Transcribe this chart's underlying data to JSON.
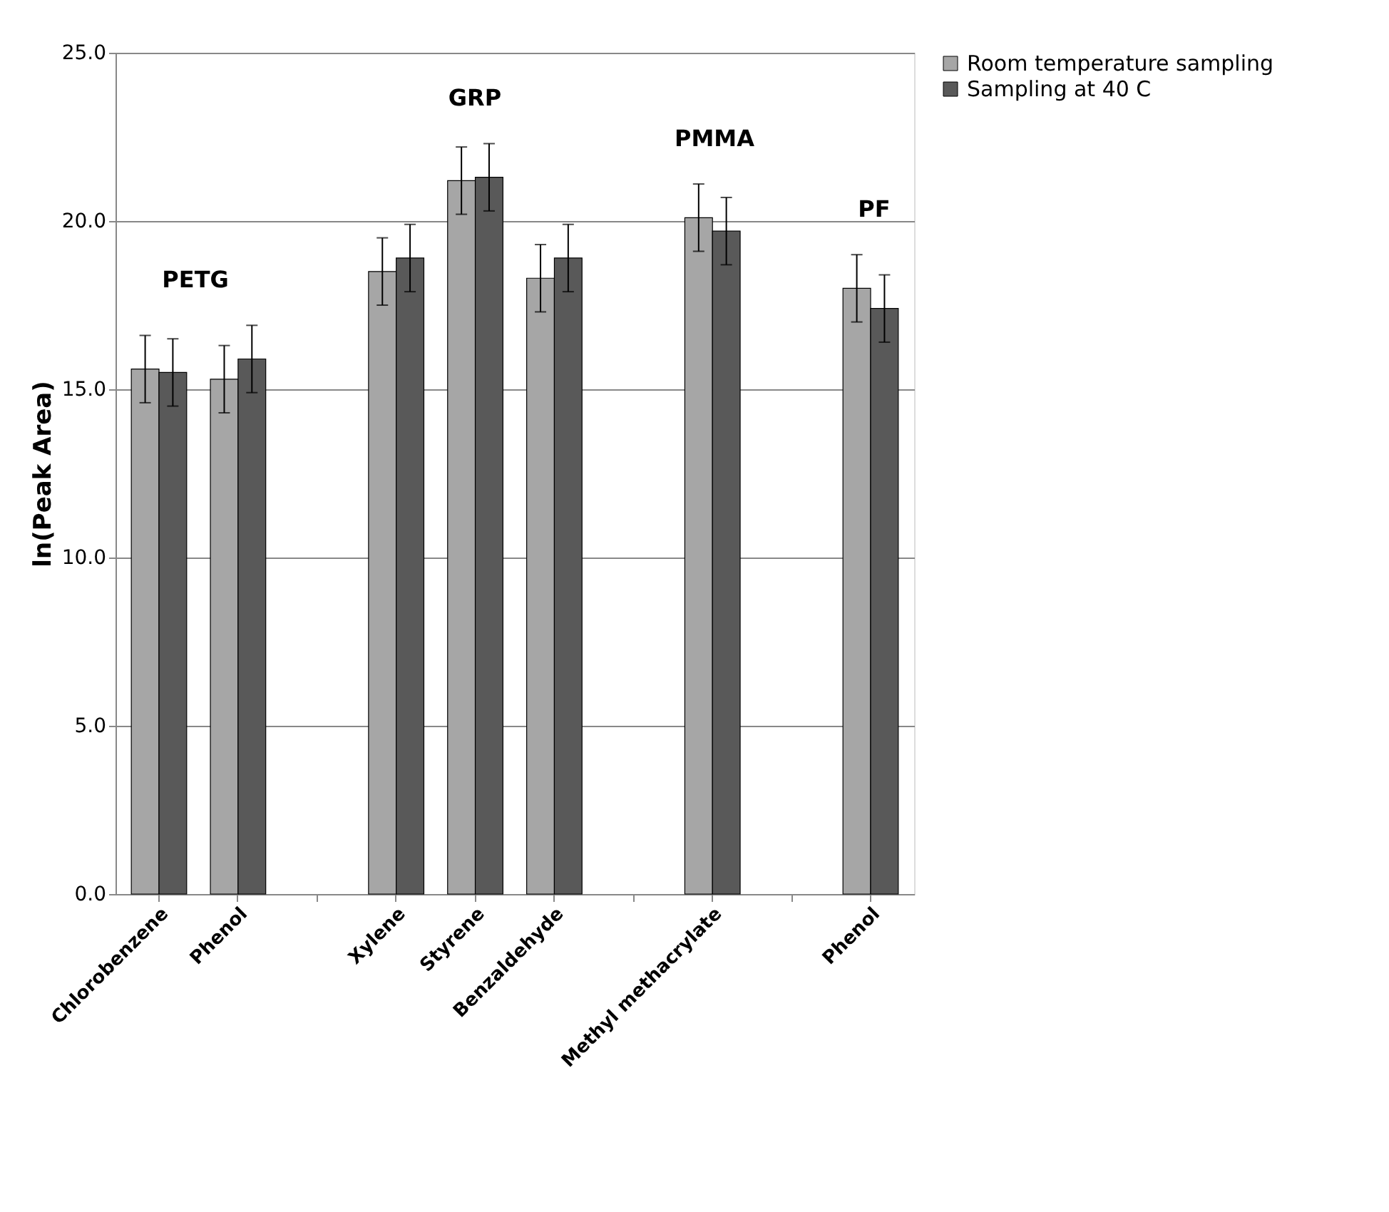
{
  "chart_data": {
    "type": "bar",
    "ylabel": "ln(Peak Area)",
    "categories": [
      "Chlorobenzene",
      "Phenol",
      null,
      "Xylene",
      "Styrene",
      "Benzaldehyde",
      null,
      "Methyl methacrylate",
      null,
      "Phenol"
    ],
    "series": [
      {
        "name": "Room temperature sampling",
        "color": "#a6a6a6",
        "values": [
          15.6,
          15.3,
          null,
          18.5,
          21.2,
          18.3,
          null,
          20.1,
          null,
          18.0
        ],
        "errors": [
          1.0,
          1.0,
          null,
          1.0,
          1.0,
          1.0,
          null,
          1.0,
          null,
          1.0
        ]
      },
      {
        "name": "Sampling at 40 C",
        "color": "#595959",
        "values": [
          15.5,
          15.9,
          null,
          18.9,
          21.3,
          18.9,
          null,
          19.7,
          null,
          17.4
        ],
        "errors": [
          1.0,
          1.0,
          null,
          1.0,
          1.0,
          1.0,
          null,
          1.0,
          null,
          1.0
        ]
      }
    ],
    "annotations": [
      "PETG",
      "GRP",
      "PMMA",
      "PF"
    ],
    "ylim": [
      0,
      25
    ],
    "yticks": [
      {
        "value": 0,
        "label": "0.0"
      },
      {
        "value": 5,
        "label": "5.0"
      },
      {
        "value": 10,
        "label": "10.0"
      },
      {
        "value": 15,
        "label": "15.0"
      },
      {
        "value": 20,
        "label": "20.0"
      },
      {
        "value": 25,
        "label": "25.0"
      }
    ],
    "grid": "y",
    "legend": "right"
  }
}
